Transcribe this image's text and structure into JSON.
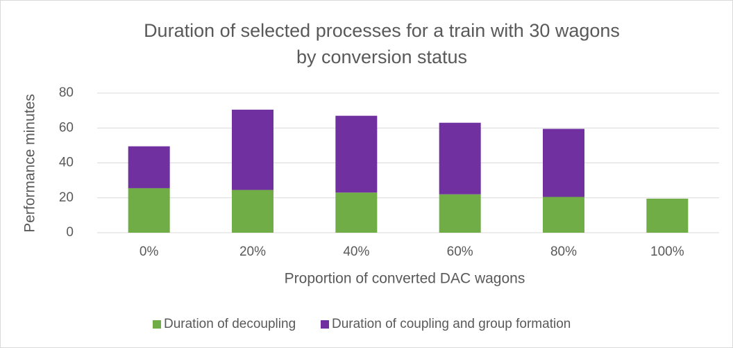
{
  "chart_data": {
    "type": "stacked_bar",
    "title": [
      "Duration of selected processes for a train with 30 wagons",
      "by conversion status"
    ],
    "xlabel": "Proportion of converted DAC wagons",
    "ylabel": "Performance minutes",
    "categories": [
      "0%",
      "20%",
      "40%",
      "60%",
      "80%",
      "100%"
    ],
    "series": [
      {
        "name": "Duration of decoupling",
        "color": "#70ad47",
        "values": [
          25.5,
          24.5,
          23,
          22,
          20.5,
          19.5
        ]
      },
      {
        "name": "Duration of coupling and group formation",
        "color": "#7030a0",
        "values": [
          24,
          46,
          44,
          41,
          39,
          0
        ]
      }
    ],
    "ylim": [
      0,
      80
    ],
    "yticks": [
      0,
      20,
      40,
      60,
      80
    ],
    "grid": true,
    "legend": "bottom"
  }
}
